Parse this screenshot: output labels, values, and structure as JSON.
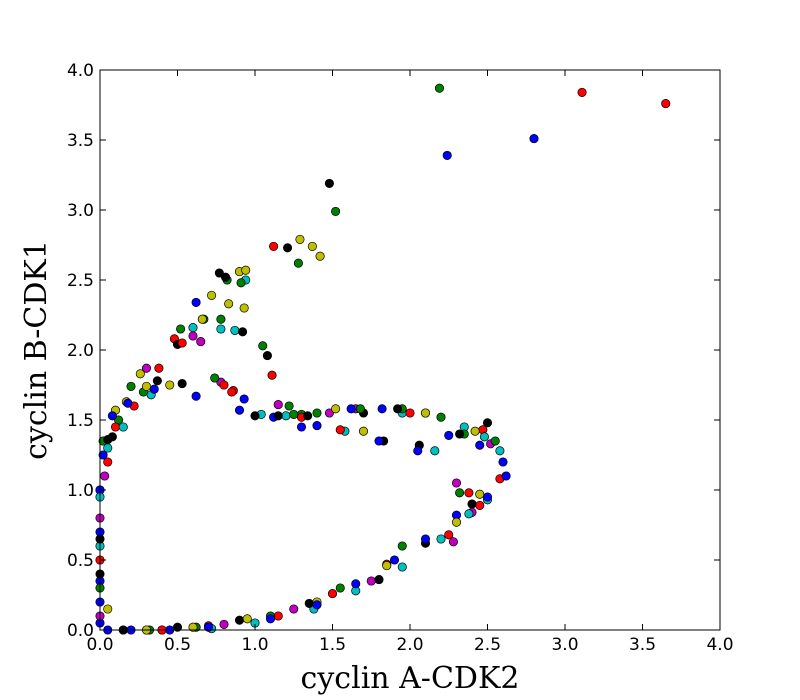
{
  "chart_data": {
    "type": "scatter",
    "title": "",
    "xlabel": "cyclin A-CDK2",
    "ylabel": "cyclin B-CDK1",
    "xlim": [
      0.0,
      4.0
    ],
    "ylim": [
      0.0,
      4.0
    ],
    "grid": false,
    "legend": "none",
    "xticks": [
      "0.0",
      "0.5",
      "1.0",
      "1.5",
      "2.0",
      "2.5",
      "3.0",
      "3.5",
      "4.0"
    ],
    "yticks": [
      "0.0",
      "0.5",
      "1.0",
      "1.5",
      "2.0",
      "2.5",
      "3.0",
      "3.5",
      "4.0"
    ],
    "colors": [
      "#0000ff",
      "#008000",
      "#ff0000",
      "#00bfbf",
      "#bfbf00",
      "#bf00bf",
      "#000000"
    ],
    "series": [
      {
        "color": "#0000ff",
        "x": [
          0.0,
          0.0,
          0.0,
          0.0,
          0.02,
          0.08,
          0.18,
          0.35,
          0.62,
          0.93,
          1.12,
          1.3,
          1.62,
          1.82,
          2.1,
          2.25,
          2.45,
          2.6,
          2.62,
          2.5,
          2.3,
          2.1,
          1.9,
          1.65,
          1.4,
          1.1,
          0.7,
          0.45,
          0.2,
          0.05,
          0.0,
          0.62,
          0.9,
          1.4,
          1.8,
          2.05,
          2.24,
          2.8
        ],
        "y": [
          0.05,
          0.35,
          0.7,
          1.0,
          1.25,
          1.53,
          1.62,
          1.72,
          2.34,
          1.65,
          1.52,
          1.45,
          1.58,
          1.58,
          1.55,
          1.39,
          1.32,
          1.2,
          1.1,
          0.95,
          0.82,
          0.65,
          0.5,
          0.33,
          0.18,
          0.08,
          0.02,
          0.0,
          0.0,
          0.0,
          0.2,
          1.67,
          1.57,
          1.46,
          1.35,
          1.28,
          3.39,
          3.51
        ]
      },
      {
        "color": "#008000",
        "x": [
          0.02,
          0.12,
          0.2,
          0.28,
          0.52,
          0.67,
          0.78,
          0.82,
          1.05,
          1.22,
          1.3,
          1.4,
          1.52,
          1.68,
          1.95,
          2.2,
          2.35,
          2.55,
          2.32,
          1.95,
          1.55,
          1.1,
          0.62,
          0.32,
          0.0,
          2.19,
          1.28,
          0.91,
          0.74,
          1.25
        ],
        "y": [
          1.35,
          1.5,
          1.74,
          1.7,
          2.15,
          2.22,
          2.22,
          2.5,
          2.03,
          1.6,
          1.54,
          1.55,
          2.99,
          1.58,
          1.58,
          1.52,
          1.4,
          1.35,
          0.98,
          0.6,
          0.3,
          0.1,
          0.02,
          0.0,
          0.3,
          3.87,
          2.62,
          2.48,
          1.8,
          1.54
        ],
        "extra": []
      },
      {
        "color": "#ff0000",
        "x": [
          0.05,
          0.1,
          0.22,
          0.38,
          0.48,
          0.53,
          0.8,
          0.86,
          1.11,
          1.12,
          1.3,
          1.55,
          2.0,
          2.38,
          2.47,
          2.58,
          2.45,
          2.25,
          1.85,
          1.5,
          1.15,
          0.7,
          0.4,
          0.15,
          0.0,
          3.11,
          3.65,
          0.85
        ],
        "y": [
          1.2,
          1.45,
          1.6,
          1.87,
          2.08,
          2.05,
          1.75,
          1.71,
          1.82,
          2.74,
          1.52,
          1.43,
          1.55,
          0.98,
          1.43,
          1.08,
          0.89,
          0.68,
          0.47,
          0.26,
          0.1,
          0.03,
          0.0,
          0.0,
          0.5,
          3.84,
          3.76,
          1.7
        ]
      },
      {
        "color": "#00bfbf",
        "x": [
          0.0,
          0.05,
          0.15,
          0.33,
          0.6,
          0.78,
          0.87,
          0.94,
          1.04,
          1.2,
          1.58,
          1.95,
          2.16,
          2.35,
          2.48,
          2.58,
          2.5,
          2.38,
          2.2,
          1.95,
          1.65,
          1.38,
          1.0,
          0.72,
          0.3,
          0.0
        ],
        "y": [
          0.6,
          1.3,
          1.45,
          1.68,
          2.16,
          2.15,
          2.14,
          2.5,
          1.54,
          1.53,
          1.42,
          1.55,
          1.28,
          1.45,
          1.38,
          1.28,
          0.93,
          0.83,
          0.65,
          0.45,
          0.28,
          0.15,
          0.05,
          0.01,
          0.0,
          0.95
        ]
      },
      {
        "color": "#bfbf00",
        "x": [
          0.0,
          0.1,
          0.17,
          0.26,
          0.3,
          0.45,
          0.66,
          0.72,
          0.83,
          0.9,
          0.93,
          0.94,
          1.29,
          1.37,
          1.42,
          1.52,
          1.7,
          2.1,
          2.42,
          2.45,
          2.3,
          1.85,
          1.4,
          0.95,
          0.6,
          0.3,
          0.05
        ],
        "y": [
          1.0,
          1.57,
          1.63,
          1.83,
          1.74,
          1.75,
          2.22,
          2.39,
          2.33,
          2.56,
          2.3,
          2.57,
          2.79,
          2.74,
          2.67,
          1.58,
          1.42,
          1.55,
          1.42,
          0.97,
          0.77,
          0.46,
          0.2,
          0.08,
          0.02,
          0.0,
          0.15
        ]
      },
      {
        "color": "#bf00bf",
        "x": [
          0.0,
          0.03,
          0.3,
          0.6,
          0.65,
          0.78,
          1.15,
          1.48,
          1.65,
          2.3,
          2.4,
          2.52,
          2.28,
          1.75,
          1.25,
          0.8,
          0.4,
          0.0
        ],
        "y": [
          0.8,
          1.1,
          1.87,
          2.1,
          2.06,
          1.77,
          1.61,
          1.55,
          1.58,
          1.05,
          0.84,
          1.33,
          0.63,
          0.35,
          0.15,
          0.04,
          0.0,
          0.1
        ]
      },
      {
        "color": "#000000",
        "x": [
          0.0,
          0.05,
          0.08,
          0.37,
          0.5,
          0.53,
          0.77,
          0.81,
          0.92,
          1.08,
          1.21,
          1.48,
          1.7,
          1.83,
          1.92,
          2.06,
          2.32,
          2.5,
          2.4,
          2.1,
          1.8,
          1.35,
          0.9,
          0.5,
          0.15,
          0.0,
          1.0,
          1.15,
          1.34
        ],
        "y": [
          0.65,
          1.36,
          1.38,
          1.78,
          2.04,
          1.76,
          2.55,
          2.52,
          2.13,
          1.96,
          2.73,
          3.19,
          1.55,
          1.35,
          1.58,
          1.32,
          1.4,
          1.48,
          0.9,
          0.62,
          0.36,
          0.19,
          0.07,
          0.02,
          0.0,
          0.4,
          1.53,
          1.53,
          1.53
        ]
      }
    ]
  }
}
